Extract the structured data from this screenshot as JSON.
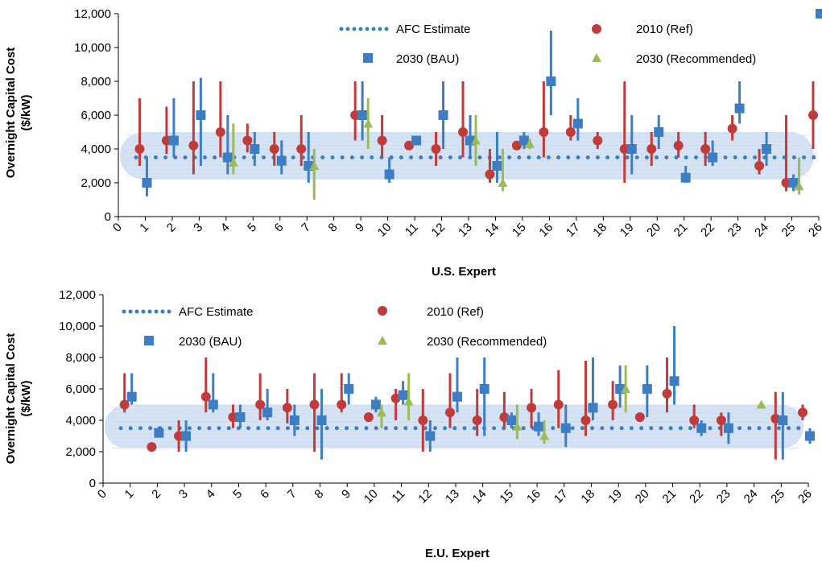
{
  "colors": {
    "afc": "#3D7EC2",
    "ref": "#C23B3B",
    "bau": "#3D7EC2",
    "rec": "#9BBB59",
    "band": "#C9DAF0",
    "axis": "#000000"
  },
  "chart_data": [
    {
      "type": "scatter",
      "xlabel": "U.S. Expert",
      "ylabel": "Overnight Capital Cost ($/kW)",
      "ylim": [
        0,
        12000
      ],
      "yticks": [
        "0",
        "2,000",
        "4,000",
        "6,000",
        "8,000",
        "10,000",
        "12,000"
      ],
      "xlim": [
        0,
        26
      ],
      "xticks": [
        "0",
        "1",
        "2",
        "3",
        "4",
        "5",
        "6",
        "7",
        "8",
        "9",
        "10",
        "11",
        "12",
        "13",
        "14",
        "15",
        "16",
        "17",
        "18",
        "19",
        "20",
        "21",
        "22",
        "23",
        "24",
        "25",
        "26"
      ],
      "legend": {
        "placement": "top-center",
        "afc": "AFC Estimate",
        "ref": "2010 (Ref)",
        "bau": "2030 (BAU)",
        "rec": "2030 (Recommended)"
      },
      "afc_band": [
        2200,
        5000
      ],
      "afc_estimate": 3500,
      "series": {
        "ref": [
          {
            "expert": 1,
            "value": 4000,
            "low": 3000,
            "high": 7000
          },
          {
            "expert": 2,
            "value": 4500,
            "low": 3700,
            "high": 6500
          },
          {
            "expert": 3,
            "value": 4200,
            "low": 2500,
            "high": 8000
          },
          {
            "expert": 4,
            "value": 5000,
            "low": 3500,
            "high": 8000
          },
          {
            "expert": 5,
            "value": 4500,
            "low": 3800,
            "high": 5500
          },
          {
            "expert": 6,
            "value": 4000,
            "low": 3000,
            "high": 5000
          },
          {
            "expert": 7,
            "value": 4000,
            "low": 3000,
            "high": 6000
          },
          {
            "expert": 9,
            "value": 6000,
            "low": 4500,
            "high": 8000
          },
          {
            "expert": 10,
            "value": 4500,
            "low": 3500,
            "high": 6000
          },
          {
            "expert": 11,
            "value": 4200
          },
          {
            "expert": 12,
            "value": 4000,
            "low": 3000,
            "high": 5000
          },
          {
            "expert": 13,
            "value": 5000,
            "low": 3500,
            "high": 8000
          },
          {
            "expert": 14,
            "value": 2500,
            "low": 2000,
            "high": 4000
          },
          {
            "expert": 15,
            "value": 4200
          },
          {
            "expert": 16,
            "value": 5000,
            "low": 3500,
            "high": 8000
          },
          {
            "expert": 17,
            "value": 5000,
            "low": 4500,
            "high": 6000
          },
          {
            "expert": 18,
            "value": 4500,
            "low": 4000,
            "high": 5000
          },
          {
            "expert": 19,
            "value": 4000,
            "low": 2000,
            "high": 8000
          },
          {
            "expert": 20,
            "value": 4000,
            "low": 3000,
            "high": 5000
          },
          {
            "expert": 21,
            "value": 4200,
            "low": 3500,
            "high": 5000
          },
          {
            "expert": 22,
            "value": 4000,
            "low": 3000,
            "high": 5000
          },
          {
            "expert": 23,
            "value": 5200,
            "low": 4500,
            "high": 6000
          },
          {
            "expert": 24,
            "value": 3000,
            "low": 2500,
            "high": 4000
          },
          {
            "expert": 25,
            "value": 2000,
            "low": 1500,
            "high": 6000
          },
          {
            "expert": 26,
            "value": 6000,
            "low": 4000,
            "high": 8000
          }
        ],
        "bau": [
          {
            "expert": 1,
            "value": 2000,
            "low": 1200,
            "high": 3500
          },
          {
            "expert": 2,
            "value": 4500,
            "low": 3500,
            "high": 7000
          },
          {
            "expert": 3,
            "value": 6000,
            "low": 3000,
            "high": 8200
          },
          {
            "expert": 4,
            "value": 3500,
            "low": 2500,
            "high": 6000
          },
          {
            "expert": 5,
            "value": 4000,
            "low": 3000,
            "high": 5000
          },
          {
            "expert": 6,
            "value": 3300,
            "low": 2500,
            "high": 4500
          },
          {
            "expert": 7,
            "value": 3000,
            "low": 2000,
            "high": 5000
          },
          {
            "expert": 9,
            "value": 6000,
            "low": 4500,
            "high": 8000
          },
          {
            "expert": 10,
            "value": 2500,
            "low": 2000,
            "high": 3500
          },
          {
            "expert": 11,
            "value": 4500
          },
          {
            "expert": 12,
            "value": 6000,
            "low": 4000,
            "high": 8000
          },
          {
            "expert": 13,
            "value": 4500,
            "low": 3500,
            "high": 6000
          },
          {
            "expert": 14,
            "value": 3000,
            "low": 2000,
            "high": 5000
          },
          {
            "expert": 15,
            "value": 4500,
            "low": 4000,
            "high": 5000
          },
          {
            "expert": 16,
            "value": 8000,
            "low": 6000,
            "high": 11000
          },
          {
            "expert": 17,
            "value": 5500,
            "low": 4500,
            "high": 7000
          },
          {
            "expert": 19,
            "value": 4000,
            "low": 2500,
            "high": 6000
          },
          {
            "expert": 20,
            "value": 5000,
            "low": 4000,
            "high": 6000
          },
          {
            "expert": 21,
            "value": 2300,
            "low": 2000,
            "high": 3000
          },
          {
            "expert": 22,
            "value": 3500,
            "low": 3000,
            "high": 4500
          },
          {
            "expert": 23,
            "value": 6400,
            "low": 5500,
            "high": 8000
          },
          {
            "expert": 24,
            "value": 4000,
            "low": 3000,
            "high": 5000
          },
          {
            "expert": 25,
            "value": 2000,
            "low": 1500,
            "high": 2500
          },
          {
            "expert": 26,
            "value": 12000
          }
        ],
        "rec": [
          {
            "expert": 4,
            "value": 3200,
            "low": 2500,
            "high": 5500
          },
          {
            "expert": 7,
            "value": 3000,
            "low": 1000,
            "high": 4000
          },
          {
            "expert": 9,
            "value": 5500,
            "low": 4000,
            "high": 7000
          },
          {
            "expert": 13,
            "value": 4500,
            "low": 3000,
            "high": 6000
          },
          {
            "expert": 14,
            "value": 2000,
            "low": 1500,
            "high": 4000
          },
          {
            "expert": 15,
            "value": 4300,
            "low": 4000,
            "high": 4600
          },
          {
            "expert": 25,
            "value": 1800,
            "low": 1300,
            "high": 3500
          }
        ]
      }
    },
    {
      "type": "scatter",
      "xlabel": "E.U. Expert",
      "ylabel": "Overnight Capital Cost ($/kW)",
      "ylim": [
        0,
        12000
      ],
      "yticks": [
        "0",
        "2,000",
        "4,000",
        "6,000",
        "8,000",
        "10,000",
        "12,000"
      ],
      "xlim": [
        0,
        26
      ],
      "xticks": [
        "0",
        "1",
        "2",
        "3",
        "4",
        "5",
        "6",
        "7",
        "8",
        "9",
        "10",
        "11",
        "12",
        "13",
        "14",
        "15",
        "16",
        "17",
        "18",
        "19",
        "20",
        "21",
        "22",
        "23",
        "24",
        "25",
        "26"
      ],
      "legend": {
        "placement": "top-left",
        "afc": "AFC Estimate",
        "ref": "2010 (Ref)",
        "bau": "2030 (BAU)",
        "rec": "2030 (Recommended)"
      },
      "afc_band": [
        2200,
        5000
      ],
      "afc_estimate": 3500,
      "series": {
        "ref": [
          {
            "expert": 1,
            "value": 5000,
            "low": 4500,
            "high": 7000
          },
          {
            "expert": 2,
            "value": 2300
          },
          {
            "expert": 3,
            "value": 3000,
            "low": 2000,
            "high": 4000
          },
          {
            "expert": 4,
            "value": 5500,
            "low": 4500,
            "high": 8000
          },
          {
            "expert": 5,
            "value": 4200,
            "low": 3500,
            "high": 5000
          },
          {
            "expert": 6,
            "value": 5000,
            "low": 4000,
            "high": 7000
          },
          {
            "expert": 7,
            "value": 4800,
            "low": 3800,
            "high": 6000
          },
          {
            "expert": 8,
            "value": 5000,
            "low": 2000,
            "high": 7000
          },
          {
            "expert": 9,
            "value": 5000,
            "low": 4500,
            "high": 7000
          },
          {
            "expert": 10,
            "value": 4200,
            "low": 4000,
            "high": 4500
          },
          {
            "expert": 11,
            "value": 5400,
            "low": 4000,
            "high": 6000
          },
          {
            "expert": 12,
            "value": 4000,
            "low": 2000,
            "high": 6000
          },
          {
            "expert": 13,
            "value": 4500,
            "low": 3500,
            "high": 7000
          },
          {
            "expert": 14,
            "value": 4000,
            "low": 3000,
            "high": 6000
          },
          {
            "expert": 15,
            "value": 4200,
            "low": 3500,
            "high": 5800
          },
          {
            "expert": 16,
            "value": 4800,
            "low": 3500,
            "high": 6000
          },
          {
            "expert": 17,
            "value": 5000,
            "low": 3500,
            "high": 7200
          },
          {
            "expert": 18,
            "value": 4000,
            "low": 3000,
            "high": 7800
          },
          {
            "expert": 19,
            "value": 5000,
            "low": 4000,
            "high": 6500
          },
          {
            "expert": 20,
            "value": 4200
          },
          {
            "expert": 21,
            "value": 5700,
            "low": 4500,
            "high": 8000
          },
          {
            "expert": 22,
            "value": 4000,
            "low": 3500,
            "high": 5000
          },
          {
            "expert": 23,
            "value": 4000,
            "low": 3000,
            "high": 4500
          },
          {
            "expert": 25,
            "value": 4100,
            "low": 1500,
            "high": 5800
          },
          {
            "expert": 26,
            "value": 4500,
            "low": 4000,
            "high": 5000
          }
        ],
        "bau": [
          {
            "expert": 1,
            "value": 5500,
            "low": 5000,
            "high": 7000
          },
          {
            "expert": 2,
            "value": 3200,
            "low": 3000,
            "high": 3600
          },
          {
            "expert": 3,
            "value": 3000,
            "low": 2000,
            "high": 4000
          },
          {
            "expert": 4,
            "value": 5000,
            "low": 4500,
            "high": 7000
          },
          {
            "expert": 5,
            "value": 4200,
            "low": 3500,
            "high": 5000
          },
          {
            "expert": 6,
            "value": 4500,
            "low": 4000,
            "high": 6000
          },
          {
            "expert": 7,
            "value": 4000,
            "low": 3000,
            "high": 5000
          },
          {
            "expert": 8,
            "value": 4000,
            "low": 1500,
            "high": 6000
          },
          {
            "expert": 9,
            "value": 6000,
            "low": 5000,
            "high": 7000
          },
          {
            "expert": 10,
            "value": 5000,
            "low": 4500,
            "high": 5500
          },
          {
            "expert": 11,
            "value": 5600,
            "low": 5000,
            "high": 6500
          },
          {
            "expert": 12,
            "value": 3000,
            "low": 2000,
            "high": 4000
          },
          {
            "expert": 13,
            "value": 5500,
            "low": 4500,
            "high": 8000
          },
          {
            "expert": 14,
            "value": 6000,
            "low": 3000,
            "high": 8000
          },
          {
            "expert": 15,
            "value": 4000,
            "low": 3500,
            "high": 4500
          },
          {
            "expert": 16,
            "value": 3600,
            "low": 3000,
            "high": 4500
          },
          {
            "expert": 17,
            "value": 3500,
            "low": 2300,
            "high": 5000
          },
          {
            "expert": 18,
            "value": 4800,
            "low": 4000,
            "high": 8000
          },
          {
            "expert": 19,
            "value": 6000,
            "low": 4800,
            "high": 7500
          },
          {
            "expert": 20,
            "value": 6000,
            "low": 4200,
            "high": 7500
          },
          {
            "expert": 21,
            "value": 6500,
            "low": 5000,
            "high": 10000
          },
          {
            "expert": 22,
            "value": 3500,
            "low": 3000,
            "high": 4000
          },
          {
            "expert": 23,
            "value": 3500,
            "low": 2500,
            "high": 4500
          },
          {
            "expert": 25,
            "value": 4000,
            "low": 1500,
            "high": 5800
          },
          {
            "expert": 26,
            "value": 3000,
            "low": 2500,
            "high": 3500
          }
        ],
        "rec": [
          {
            "expert": 10,
            "value": 4500,
            "low": 3500,
            "high": 5000
          },
          {
            "expert": 11,
            "value": 5200,
            "low": 4000,
            "high": 7000
          },
          {
            "expert": 15,
            "value": 3600,
            "low": 2800,
            "high": 5000
          },
          {
            "expert": 16,
            "value": 3000,
            "low": 2500,
            "high": 4000
          },
          {
            "expert": 19,
            "value": 6000,
            "low": 4500,
            "high": 7500
          },
          {
            "expert": 24,
            "value": 5000
          }
        ]
      }
    }
  ]
}
